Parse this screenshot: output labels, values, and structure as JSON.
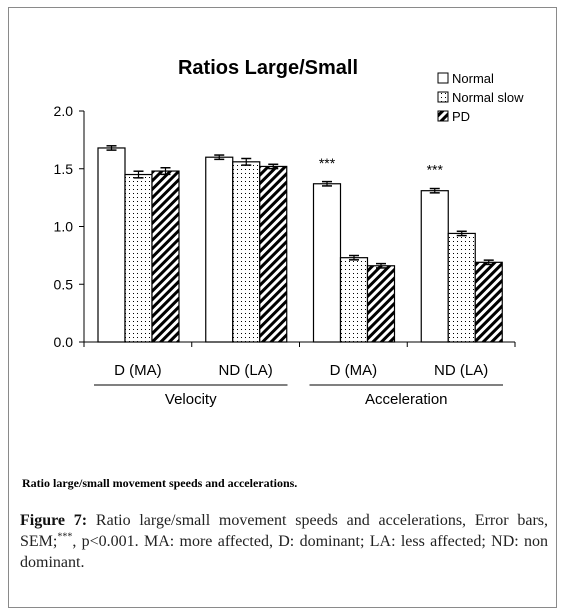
{
  "chart_data": {
    "type": "bar",
    "title": "Ratios Large/Small",
    "xlabel": "",
    "ylabel": "",
    "ylim": [
      0,
      2
    ],
    "yticks": [
      "0.0",
      "0.5",
      "1.0",
      "1.5",
      "2.0"
    ],
    "grid": false,
    "legend_position": "top-right",
    "categories": [
      "D (MA)",
      "ND (LA)",
      "D (MA)",
      "ND (LA)"
    ],
    "groups": [
      {
        "label": "Velocity",
        "categories": [
          "D (MA)",
          "ND (LA)"
        ]
      },
      {
        "label": "Acceleration",
        "categories": [
          "D (MA)",
          "ND (LA)"
        ]
      }
    ],
    "series": [
      {
        "name": "Normal",
        "pattern": "white",
        "values": [
          1.68,
          1.6,
          1.37,
          1.31
        ],
        "errors": [
          0.01,
          0.01,
          0.01,
          0.01
        ]
      },
      {
        "name": "Normal slow",
        "pattern": "dots",
        "values": [
          1.45,
          1.56,
          0.73,
          0.94
        ],
        "errors": [
          0.02,
          0.02,
          0.01,
          0.01
        ]
      },
      {
        "name": "PD",
        "pattern": "hatch",
        "values": [
          1.48,
          1.52,
          0.66,
          0.69
        ],
        "errors": [
          0.02,
          0.01,
          0.01,
          0.01
        ]
      }
    ],
    "annotations": [
      "***",
      "***"
    ]
  },
  "subcaption": "Ratio large/small movement  speeds and accelerations.",
  "caption": {
    "label": "Figure 7:",
    "text_before_sup": " Ratio large/small movement speeds and accelerations, Error bars, SEM;",
    "sup": "***",
    "text_after_sup": ", p<0.001. MA: more affected, D: dominant; LA: less affected; ND: non dominant."
  },
  "colors": {
    "bar_fill": "#ffffff",
    "stroke": "#000000",
    "frame": "#8a8a8a"
  }
}
